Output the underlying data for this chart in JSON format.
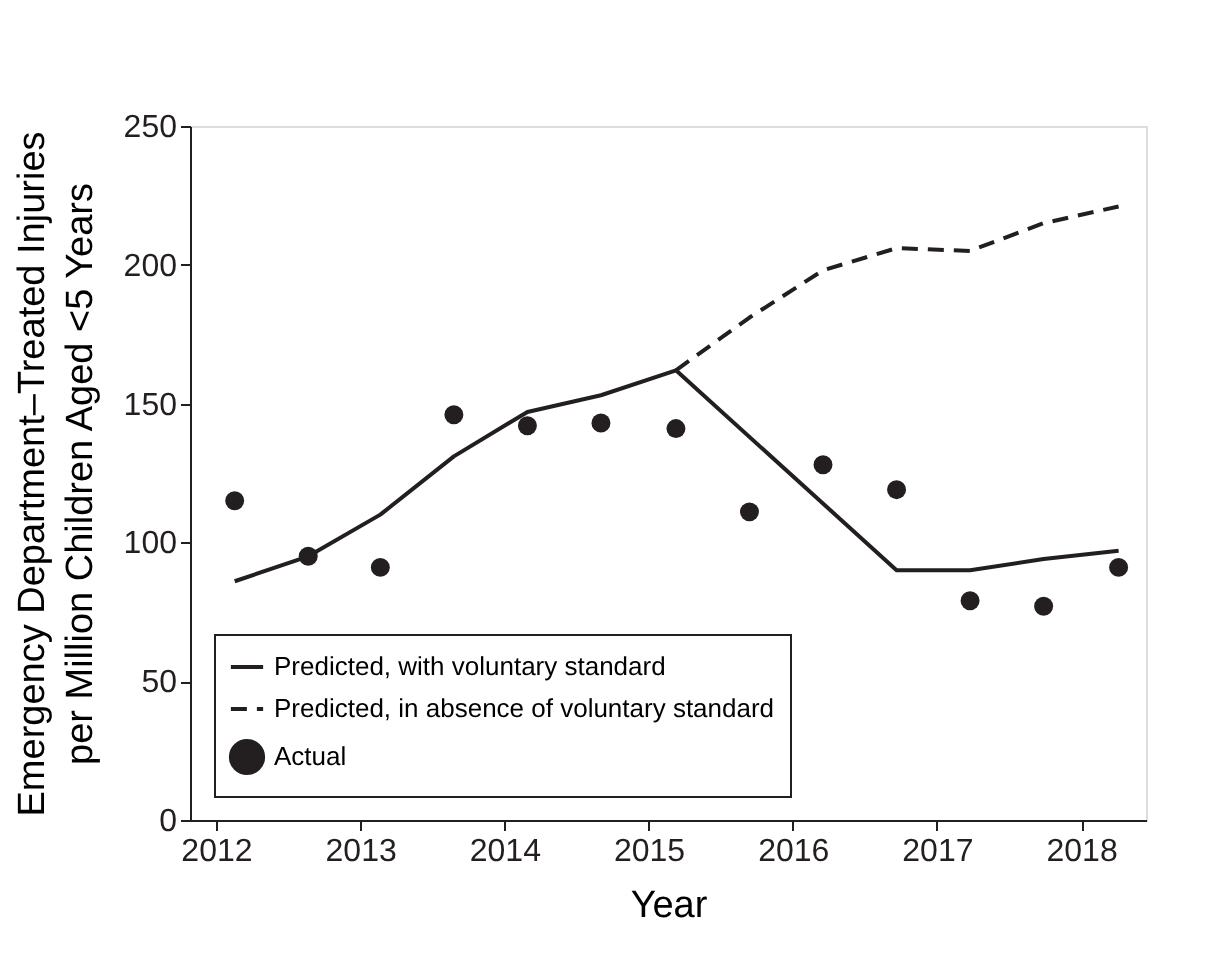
{
  "chart_data": {
    "type": "line",
    "xlabel": "Year",
    "ylabel": "Emergency Department–Treated Injuries\nper Million Children Aged <5 Years",
    "xlim": [
      2011.82,
      2018.45
    ],
    "xticks": [
      2012,
      2013,
      2014,
      2015,
      2016,
      2017,
      2018
    ],
    "ylim": [
      0,
      250
    ],
    "yticks": [
      0,
      50,
      100,
      150,
      200,
      250
    ],
    "grid": false,
    "legend": "bottom left",
    "series": [
      {
        "name": "Predicted, with voluntary standard",
        "type": "line",
        "line_style": "solid",
        "color": "#231f20",
        "x": [
          2012.13,
          2012.64,
          2013.14,
          2013.65,
          2014.16,
          2014.67,
          2015.19,
          2016.72,
          2017.23,
          2017.74,
          2018.26
        ],
        "values": [
          86,
          95,
          110,
          131,
          147,
          153,
          162,
          90,
          90,
          94,
          97
        ]
      },
      {
        "name": "Predicted, in absence of voluntary standard",
        "type": "line",
        "line_style": "dashed",
        "color": "#231f20",
        "x": [
          2015.19,
          2015.7,
          2016.21,
          2016.72,
          2017.23,
          2017.74,
          2018.26
        ],
        "values": [
          162,
          181,
          198,
          206,
          205,
          215,
          221
        ]
      },
      {
        "name": "Actual",
        "type": "scatter",
        "marker": "circle",
        "color": "#231f20",
        "x": [
          2012.13,
          2012.64,
          2013.14,
          2013.65,
          2014.16,
          2014.67,
          2015.19,
          2015.7,
          2016.21,
          2016.72,
          2017.23,
          2017.74,
          2018.26
        ],
        "values": [
          115,
          95,
          91,
          146,
          142,
          143,
          141,
          111,
          128,
          119,
          79,
          77,
          91
        ]
      }
    ]
  }
}
